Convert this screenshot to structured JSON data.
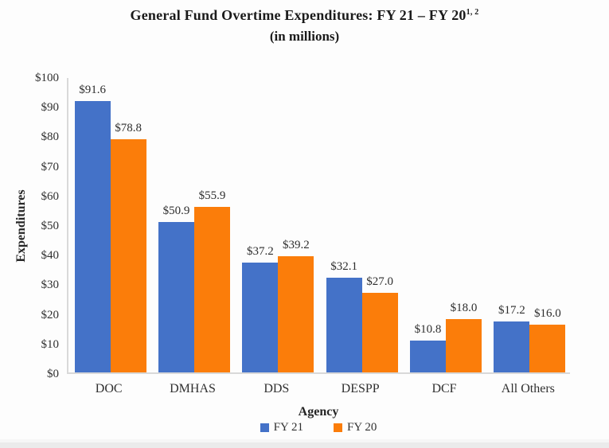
{
  "page": {
    "background": "#fdfdfd",
    "bottom_strip_color": "#ebebeb"
  },
  "title": {
    "line1": "General Fund Overtime Expenditures: FY 21 – FY 20",
    "superscript": "1, 2",
    "line2": "(in millions)"
  },
  "chart_data": {
    "type": "bar",
    "title": "General Fund Overtime Expenditures: FY 21 – FY 20 (in millions)",
    "categories": [
      "DOC",
      "DMHAS",
      "DDS",
      "DESPP",
      "DCF",
      "All Others"
    ],
    "series": [
      {
        "name": "FY 21",
        "color": "#4472C8",
        "values": [
          91.6,
          50.9,
          37.2,
          32.1,
          10.8,
          17.2
        ],
        "labels": [
          "$91.6",
          "$50.9",
          "$37.2",
          "$32.1",
          "$10.8",
          "$17.2"
        ]
      },
      {
        "name": "FY 20",
        "color": "#FB7D0A",
        "values": [
          78.8,
          55.9,
          39.2,
          27.0,
          18.0,
          16.0
        ],
        "labels": [
          "$78.8",
          "$55.9",
          "$39.2",
          "$27.0",
          "$18.0",
          "$16.0"
        ]
      }
    ],
    "xlabel": "Agency",
    "ylabel": "Expenditures",
    "ylim": [
      0,
      100
    ],
    "ytick_step": 10,
    "ytick_labels": [
      "$0",
      "$10",
      "$20",
      "$30",
      "$40",
      "$50",
      "$60",
      "$70",
      "$80",
      "$90",
      "$100"
    ],
    "grid": false,
    "legend_position": "bottom"
  }
}
